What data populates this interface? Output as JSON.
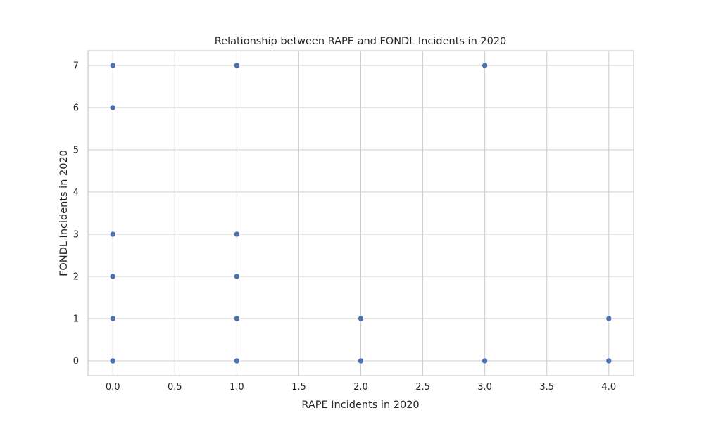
{
  "chart_data": {
    "type": "scatter",
    "title": "Relationship between RAPE and FONDL Incidents in 2020",
    "xlabel": "RAPE Incidents in 2020",
    "ylabel": "FONDL Incidents in 2020",
    "xlim": [
      -0.2,
      4.2
    ],
    "ylim": [
      -0.35,
      7.35
    ],
    "xticks": [
      0.0,
      0.5,
      1.0,
      1.5,
      2.0,
      2.5,
      3.0,
      3.5,
      4.0
    ],
    "xtick_labels": [
      "0.0",
      "0.5",
      "1.0",
      "1.5",
      "2.0",
      "2.5",
      "3.0",
      "3.5",
      "4.0"
    ],
    "yticks": [
      0,
      1,
      2,
      3,
      4,
      5,
      6,
      7
    ],
    "ytick_labels": [
      "0",
      "1",
      "2",
      "3",
      "4",
      "5",
      "6",
      "7"
    ],
    "grid": true,
    "color": "#4c72b0",
    "points": [
      {
        "x": 0,
        "y": 7
      },
      {
        "x": 0,
        "y": 6
      },
      {
        "x": 0,
        "y": 3
      },
      {
        "x": 0,
        "y": 2
      },
      {
        "x": 0,
        "y": 1
      },
      {
        "x": 0,
        "y": 0
      },
      {
        "x": 1,
        "y": 7
      },
      {
        "x": 1,
        "y": 3
      },
      {
        "x": 1,
        "y": 2
      },
      {
        "x": 1,
        "y": 1
      },
      {
        "x": 1,
        "y": 0
      },
      {
        "x": 2,
        "y": 1
      },
      {
        "x": 2,
        "y": 0
      },
      {
        "x": 3,
        "y": 7
      },
      {
        "x": 3,
        "y": 0
      },
      {
        "x": 4,
        "y": 1
      },
      {
        "x": 4,
        "y": 0
      }
    ]
  }
}
